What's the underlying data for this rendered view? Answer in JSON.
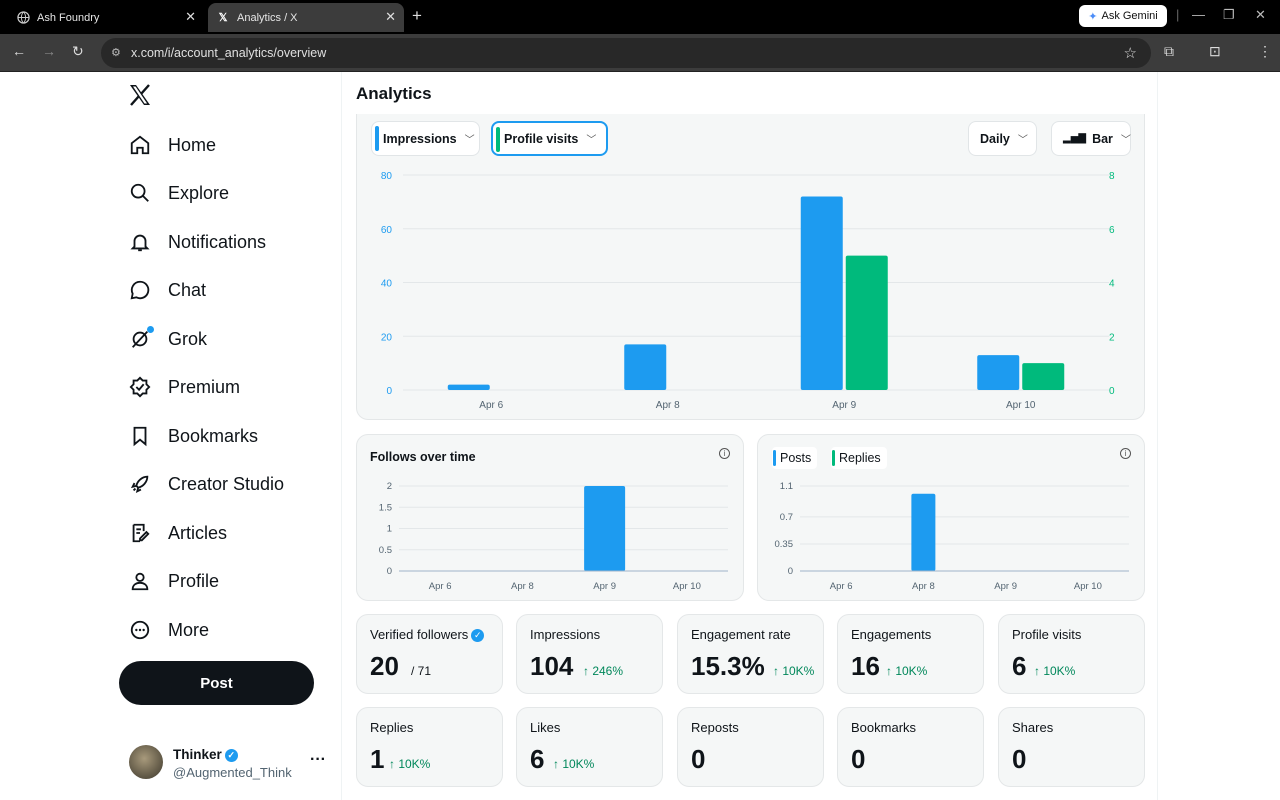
{
  "browser": {
    "tabs": [
      {
        "title": "Ash Foundry",
        "icon": "globe-icon"
      },
      {
        "title": "Analytics / X",
        "icon": "x-logo-icon"
      }
    ],
    "ask_gemini": "Ask Gemini",
    "url": "x.com/i/account_analytics/overview"
  },
  "nav": {
    "items": [
      "Home",
      "Explore",
      "Notifications",
      "Chat",
      "Grok",
      "Premium",
      "Bookmarks",
      "Creator Studio",
      "Articles",
      "Profile",
      "More"
    ],
    "post_label": "Post",
    "account": {
      "name": "Thinker",
      "handle": "@Augmented_Think"
    }
  },
  "page": {
    "title": "Analytics"
  },
  "controls": {
    "metric1": "Impressions",
    "metric2": "Profile visits",
    "interval": "Daily",
    "chart_kind": "Bar"
  },
  "colors": {
    "impressions": "#1d9bf0",
    "profile_visits": "#00ba7c"
  },
  "chart_data": [
    {
      "type": "bar",
      "categories": [
        "Apr 6",
        "Apr 8",
        "Apr 9",
        "Apr 10"
      ],
      "series": [
        {
          "name": "Impressions",
          "axis": "left",
          "values": [
            2,
            17,
            72,
            13
          ]
        },
        {
          "name": "Profile visits",
          "axis": "right",
          "values": [
            0,
            0,
            5,
            1
          ]
        }
      ],
      "ylim_left": [
        0,
        80
      ],
      "ylim_right": [
        0,
        8
      ],
      "yticks_left": [
        0,
        20,
        40,
        60,
        80
      ],
      "yticks_right": [
        0,
        2,
        4,
        6,
        8
      ],
      "grid": true
    },
    {
      "type": "bar",
      "title": "Follows over time",
      "categories": [
        "Apr 6",
        "Apr 8",
        "Apr 9",
        "Apr 10"
      ],
      "values": [
        0,
        0,
        2,
        0
      ],
      "ylim": [
        0,
        2
      ],
      "yticks": [
        "0",
        "0.5",
        "1",
        "1.5",
        "2"
      ],
      "grid": true
    },
    {
      "type": "bar",
      "categories": [
        "Apr 6",
        "Apr 8",
        "Apr 9",
        "Apr 10"
      ],
      "series": [
        {
          "name": "Posts",
          "values": [
            0,
            1,
            0,
            0
          ]
        },
        {
          "name": "Replies",
          "values": [
            0,
            0,
            0,
            0
          ]
        }
      ],
      "ylim": [
        0,
        1.1
      ],
      "yticks": [
        "0",
        "0.35",
        "0.7",
        "1.1"
      ],
      "grid": true
    }
  ],
  "stats": [
    {
      "label": "Verified followers",
      "value": "20",
      "total": "/ 71",
      "verified": true
    },
    {
      "label": "Impressions",
      "value": "104",
      "change": "↑ 246%"
    },
    {
      "label": "Engagement rate",
      "value": "15.3%",
      "change": "↑ 10K%"
    },
    {
      "label": "Engagements",
      "value": "16",
      "change": "↑ 10K%"
    },
    {
      "label": "Profile visits",
      "value": "6",
      "change": "↑ 10K%"
    },
    {
      "label": "Replies",
      "value": "1",
      "change": "↑ 10K%"
    },
    {
      "label": "Likes",
      "value": "6",
      "change": "↑ 10K%"
    },
    {
      "label": "Reposts",
      "value": "0"
    },
    {
      "label": "Bookmarks",
      "value": "0"
    },
    {
      "label": "Shares",
      "value": "0"
    }
  ]
}
